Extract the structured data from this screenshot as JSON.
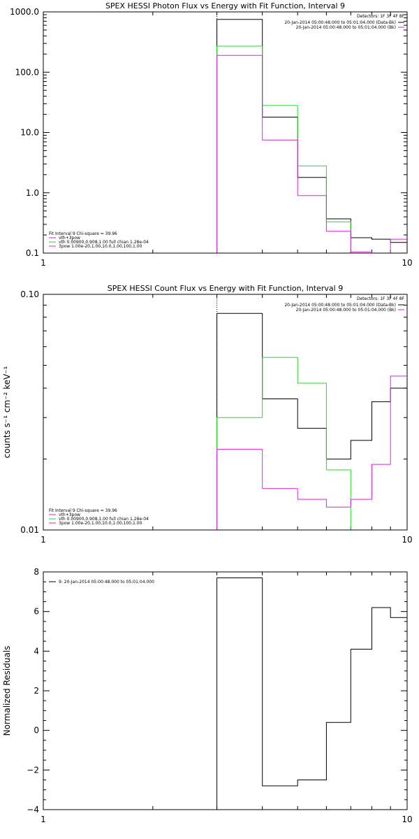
{
  "colors": {
    "black": "#000000",
    "green": "#22dd22",
    "magenta": "#dd22dd",
    "axis": "#000000"
  },
  "chart_data": [
    {
      "type": "step-line",
      "title": "SPEX HESSI Photon Flux vs Energy with Fit Function, Interval 9",
      "xlabel": "",
      "ylabel": "",
      "xscale": "log",
      "yscale": "log",
      "xlim": [
        1,
        10
      ],
      "ylim": [
        0.1,
        1000
      ],
      "x_tick_labels": [
        {
          "v": 1,
          "t": "1"
        },
        {
          "v": 10,
          "t": "10"
        }
      ],
      "y_tick_labels": [
        {
          "v": 0.1,
          "t": "0.1"
        },
        {
          "v": 1,
          "t": "1.0"
        },
        {
          "v": 10,
          "t": "10.0"
        },
        {
          "v": 100,
          "t": "100.0"
        },
        {
          "v": 1000,
          "t": "1000.0"
        }
      ],
      "bin_edges": [
        3,
        4,
        5,
        6,
        7,
        8,
        9,
        10
      ],
      "vline_x": 3,
      "series": [
        {
          "color": "black",
          "values": [
            750,
            18,
            1.8,
            0.37,
            0.18,
            0.17,
            0.15
          ]
        },
        {
          "color": "green",
          "values": [
            270,
            28,
            2.8,
            0.33,
            0.09,
            0.09,
            0.09
          ]
        },
        {
          "color": "magenta",
          "values": [
            190,
            7.5,
            0.9,
            0.23,
            0.105,
            0.095,
            0.17
          ]
        }
      ],
      "detectors_text": "Detectors: 1F 3F 4F 8F",
      "legend_right": [
        {
          "color": "black",
          "text": "20-Jan-2014 05:00:48.000 to 05:01:04.000 (Data-Bk)"
        },
        {
          "color": "magenta",
          "text": "20-Jan-2014 05:00:48.000 to 05:01:04.000 (Bk)"
        }
      ],
      "legend_left": [
        {
          "color": null,
          "text": "Fit Interval 9   Chi-square = 39.96"
        },
        {
          "color": "magenta",
          "text": "vth+3pow"
        },
        {
          "color": "green",
          "text": "vth 0.00900,0.908,1.00  full chian 1.28e-04"
        },
        {
          "color": "magenta",
          "text": "3pow 1.00e-20,1.00,10.0,1.00,100,1.00"
        }
      ]
    },
    {
      "type": "step-line",
      "title": "SPEX HESSI Count Flux vs Energy with Fit Function, Interval 9",
      "xlabel": "",
      "ylabel": "counts s⁻¹ cm⁻² keV⁻¹",
      "xscale": "log",
      "yscale": "log",
      "xlim": [
        1,
        10
      ],
      "ylim": [
        0.01,
        0.1
      ],
      "x_tick_labels": [
        {
          "v": 1,
          "t": "1"
        },
        {
          "v": 10,
          "t": "10"
        }
      ],
      "y_tick_labels": [
        {
          "v": 0.01,
          "t": "0.01"
        },
        {
          "v": 0.1,
          "t": "0.10"
        }
      ],
      "bin_edges": [
        3,
        4,
        5,
        6,
        7,
        8,
        9,
        10
      ],
      "vline_x": 3,
      "series": [
        {
          "color": "black",
          "values": [
            0.083,
            0.036,
            0.027,
            0.02,
            0.024,
            0.035,
            0.04
          ]
        },
        {
          "color": "green",
          "values": [
            0.03,
            0.054,
            0.042,
            0.018,
            0.009,
            0.009,
            0.009
          ]
        },
        {
          "color": "magenta",
          "values": [
            0.022,
            0.015,
            0.0135,
            0.0125,
            0.0135,
            0.019,
            0.045
          ]
        }
      ],
      "detectors_text": "Detectors: 1F 3F 4F 8F",
      "legend_right": [
        {
          "color": "black",
          "text": "20-Jan-2014 05:00:48.000 to 05:01:04.000 (Data-Bk)"
        },
        {
          "color": "magenta",
          "text": "20-Jan-2014 05:00:48.000 to 05:01:04.000 (Bk)"
        }
      ],
      "legend_left": [
        {
          "color": null,
          "text": "Fit Interval 9   Chi-square = 39.96"
        },
        {
          "color": "magenta",
          "text": "vth+3pow"
        },
        {
          "color": "green",
          "text": "vth 0.00900,0.908,1.00  full chian 1.28e-04"
        },
        {
          "color": "magenta",
          "text": "3pow 1.00e-20,1.00,10.0,1.00,100,1.00"
        }
      ]
    },
    {
      "type": "step-line",
      "title": "",
      "xlabel": "",
      "ylabel": "Normalized Residuals",
      "xscale": "log",
      "yscale": "linear",
      "xlim": [
        1,
        10
      ],
      "ylim": [
        -4,
        8
      ],
      "x_tick_labels": [
        {
          "v": 1,
          "t": "1"
        },
        {
          "v": 10,
          "t": "10"
        }
      ],
      "y_tick_labels": [
        {
          "v": -4,
          "t": "−4"
        },
        {
          "v": -2,
          "t": "−2"
        },
        {
          "v": 0,
          "t": "0"
        },
        {
          "v": 2,
          "t": "2"
        },
        {
          "v": 4,
          "t": "4"
        },
        {
          "v": 6,
          "t": "6"
        },
        {
          "v": 8,
          "t": "8"
        }
      ],
      "bin_edges": [
        3,
        4,
        5,
        6,
        7,
        8,
        9,
        10
      ],
      "vline_x": null,
      "series": [
        {
          "color": "black",
          "values": [
            7.7,
            -2.8,
            -2.5,
            0.4,
            4.1,
            6.2,
            5.7
          ]
        }
      ],
      "detectors_text": "",
      "legend_right": [],
      "legend_left": [
        {
          "color": "black",
          "text": "9: 20-Jan-2014 05:00:48.000 to 05:01:04.000"
        }
      ]
    }
  ]
}
